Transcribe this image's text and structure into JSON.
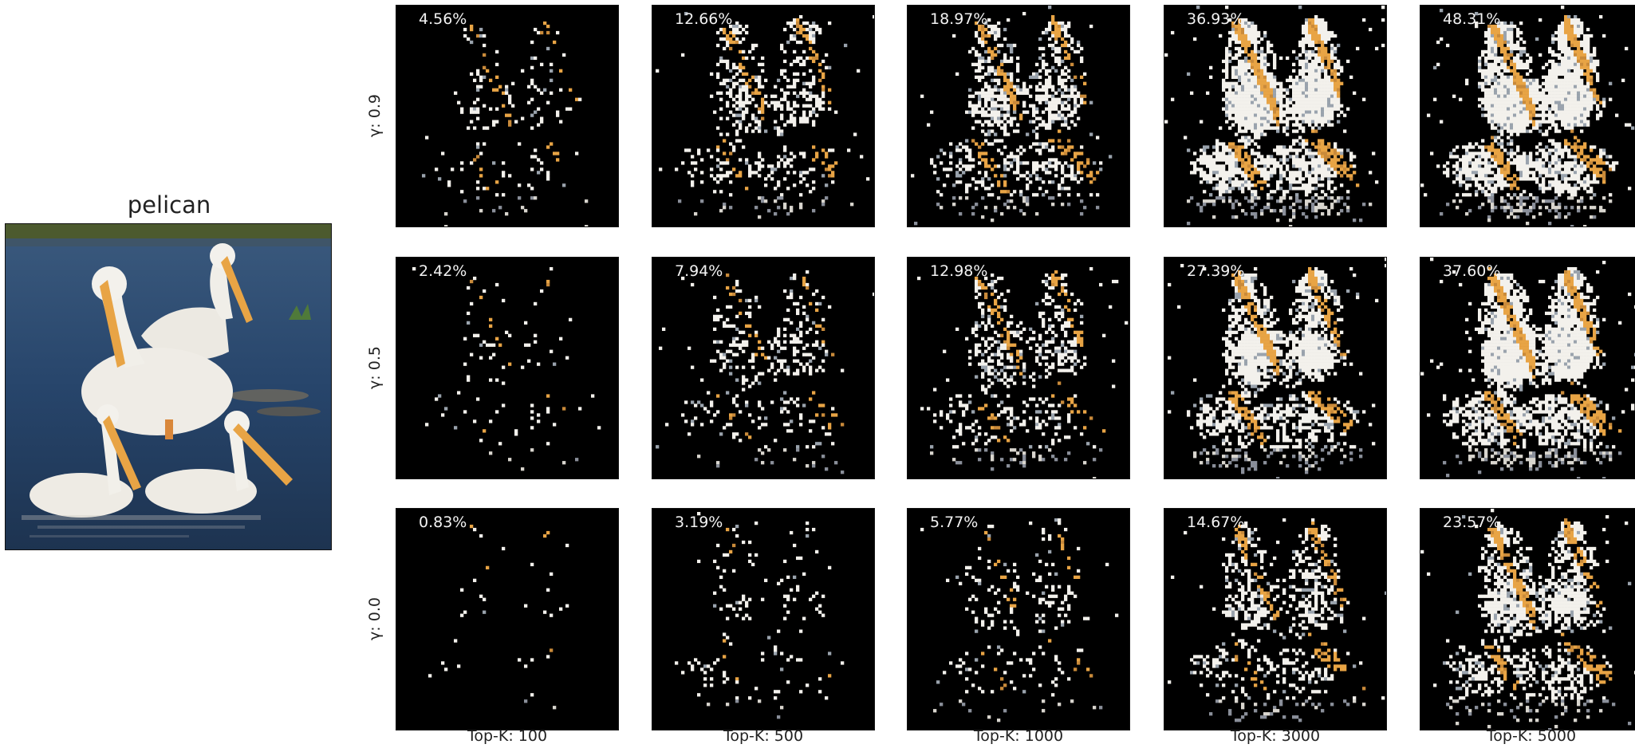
{
  "figure": {
    "original_title": "pelican",
    "row_labels": [
      "γ: 0.9",
      "γ: 0.5",
      "γ: 0.0"
    ],
    "col_labels": [
      "Top-K: 100",
      "Top-K: 500",
      "Top-K: 1000",
      "Top-K: 3000",
      "Top-K: 5000"
    ],
    "percentages": [
      [
        "4.56%",
        "12.66%",
        "18.97%",
        "36.93%",
        "48.31%"
      ],
      [
        "2.42%",
        "7.94%",
        "12.98%",
        "27.39%",
        "37.60%"
      ],
      [
        "0.83%",
        "3.19%",
        "5.77%",
        "14.67%",
        "23.57%"
      ]
    ],
    "coverage": [
      [
        0.0456,
        0.1266,
        0.1897,
        0.3693,
        0.4831
      ],
      [
        0.0242,
        0.0794,
        0.1298,
        0.2739,
        0.376
      ],
      [
        0.0083,
        0.0319,
        0.0577,
        0.1467,
        0.2357
      ]
    ],
    "colors": {
      "background": "#000000",
      "water": "#2f4a6e",
      "feather": "#f3f1ec",
      "beak": "#e8a445"
    }
  }
}
